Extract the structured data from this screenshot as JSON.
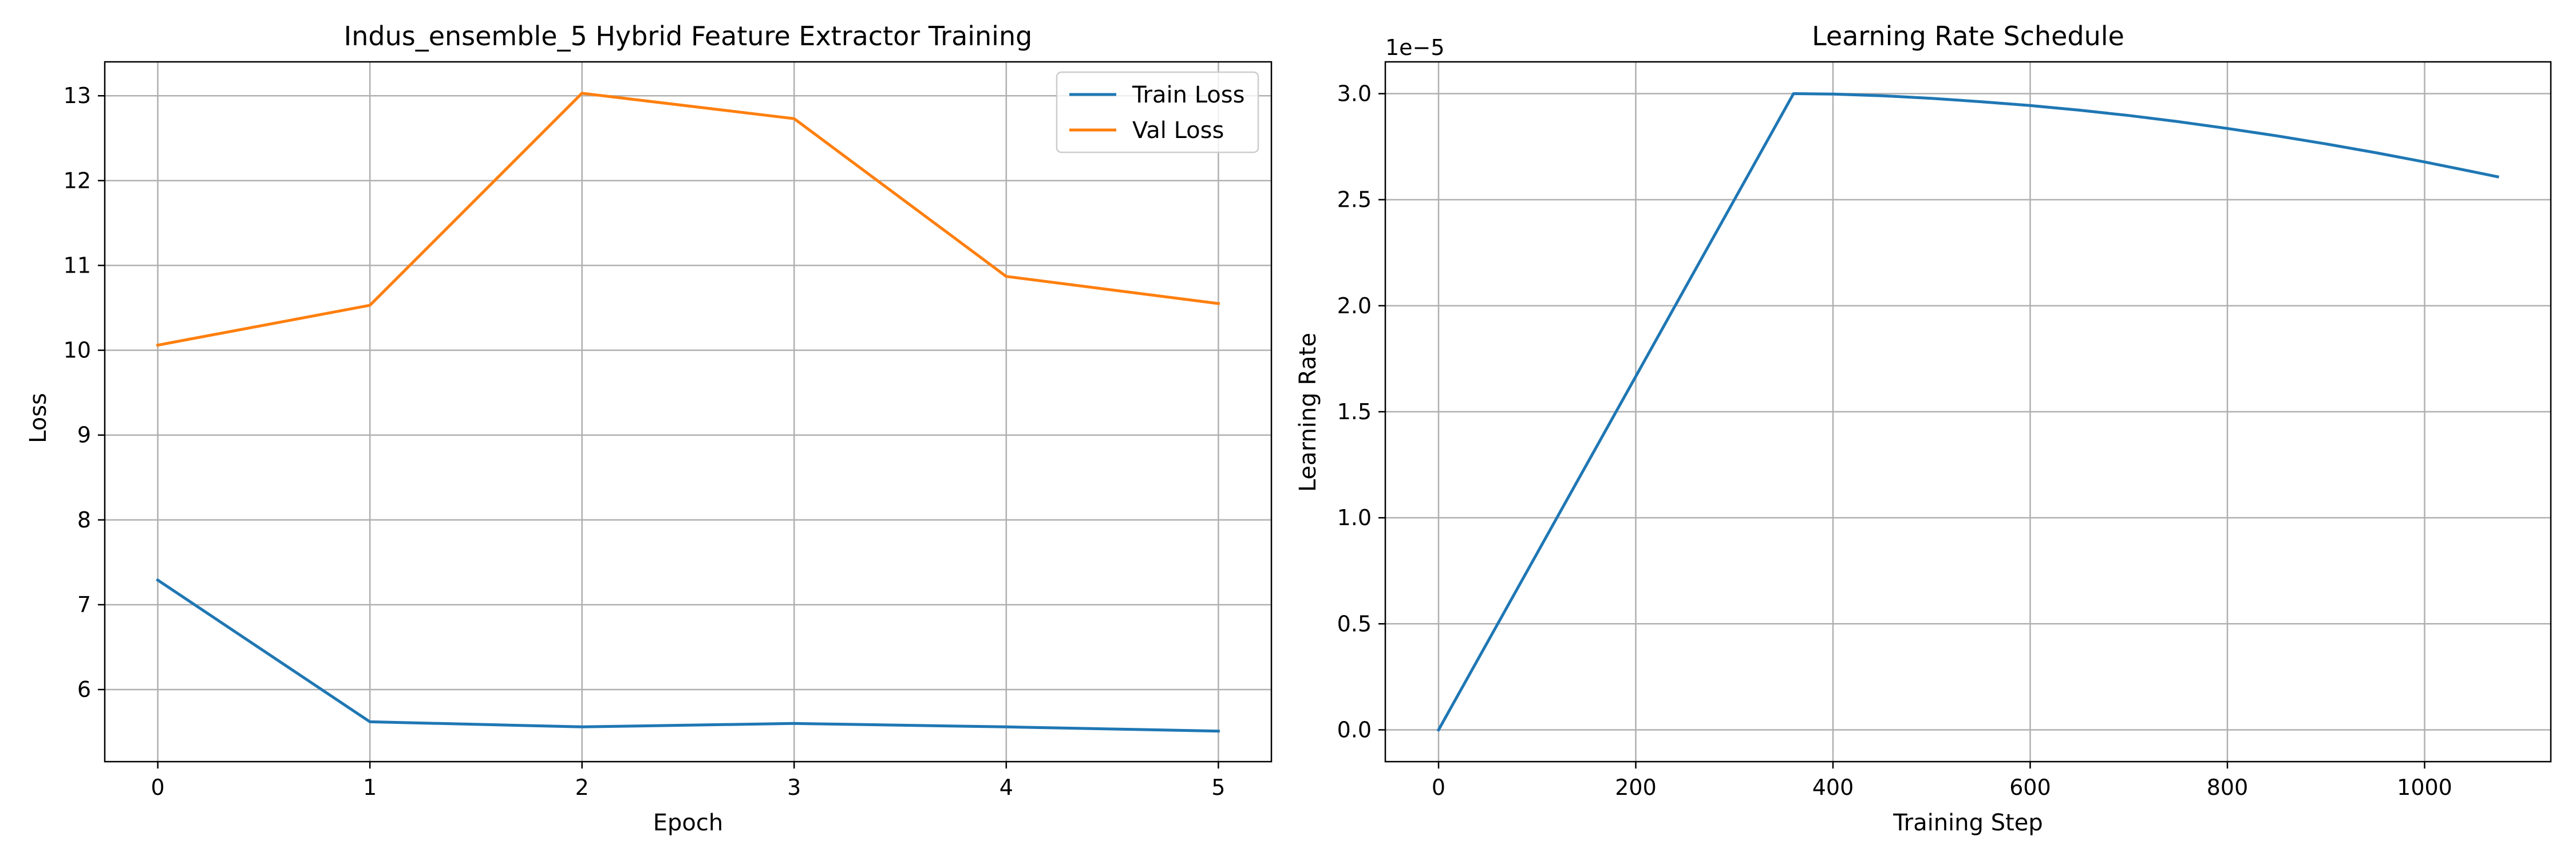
{
  "colors": {
    "train": "#1f77b4",
    "val": "#ff7f0e",
    "lr": "#1f77b4"
  },
  "chart_data": [
    {
      "type": "line",
      "title": "Indus_ensemble_5 Hybrid Feature Extractor Training",
      "xlabel": "Epoch",
      "ylabel": "Loss",
      "x": [
        0,
        1,
        2,
        3,
        4,
        5
      ],
      "xlim": [
        -0.25,
        5.25
      ],
      "ylim": [
        5.15,
        13.4
      ],
      "xticks": [
        0,
        1,
        2,
        3,
        4,
        5
      ],
      "yticks": [
        6,
        7,
        8,
        9,
        10,
        11,
        12,
        13
      ],
      "grid": true,
      "legend": "top-right",
      "series": [
        {
          "name": "Train Loss",
          "color": "#1f77b4",
          "values": [
            7.29,
            5.62,
            5.56,
            5.6,
            5.56,
            5.51
          ]
        },
        {
          "name": "Val Loss",
          "color": "#ff7f0e",
          "values": [
            10.06,
            10.53,
            13.03,
            12.73,
            10.87,
            10.55
          ]
        }
      ]
    },
    {
      "type": "line",
      "title": "Learning Rate Schedule",
      "xlabel": "Training Step",
      "ylabel": "Learning Rate",
      "offset_text": "1e−5",
      "xlim": [
        -54,
        1128
      ],
      "ylim": [
        -0.15,
        3.15
      ],
      "xticks": [
        0,
        200,
        400,
        600,
        800,
        1000
      ],
      "yticks": [
        0.0,
        0.5,
        1.0,
        1.5,
        2.0,
        2.5,
        3.0
      ],
      "ytick_labels": [
        "0.0",
        "0.5",
        "1.0",
        "1.5",
        "2.0",
        "2.5",
        "3.0"
      ],
      "grid": true,
      "legend": "none",
      "series": [
        {
          "color": "#1f77b4",
          "x": [
            0,
            60,
            120,
            180,
            240,
            300,
            360,
            400,
            450,
            500,
            550,
            600,
            650,
            700,
            750,
            800,
            850,
            900,
            950,
            1000,
            1050,
            1074
          ],
          "values": [
            0.0,
            0.5,
            1.0,
            1.5,
            2.0,
            2.5,
            3.0,
            2.998,
            2.99,
            2.978,
            2.962,
            2.944,
            2.922,
            2.897,
            2.868,
            2.836,
            2.801,
            2.763,
            2.722,
            2.678,
            2.631,
            2.608
          ]
        }
      ]
    }
  ]
}
